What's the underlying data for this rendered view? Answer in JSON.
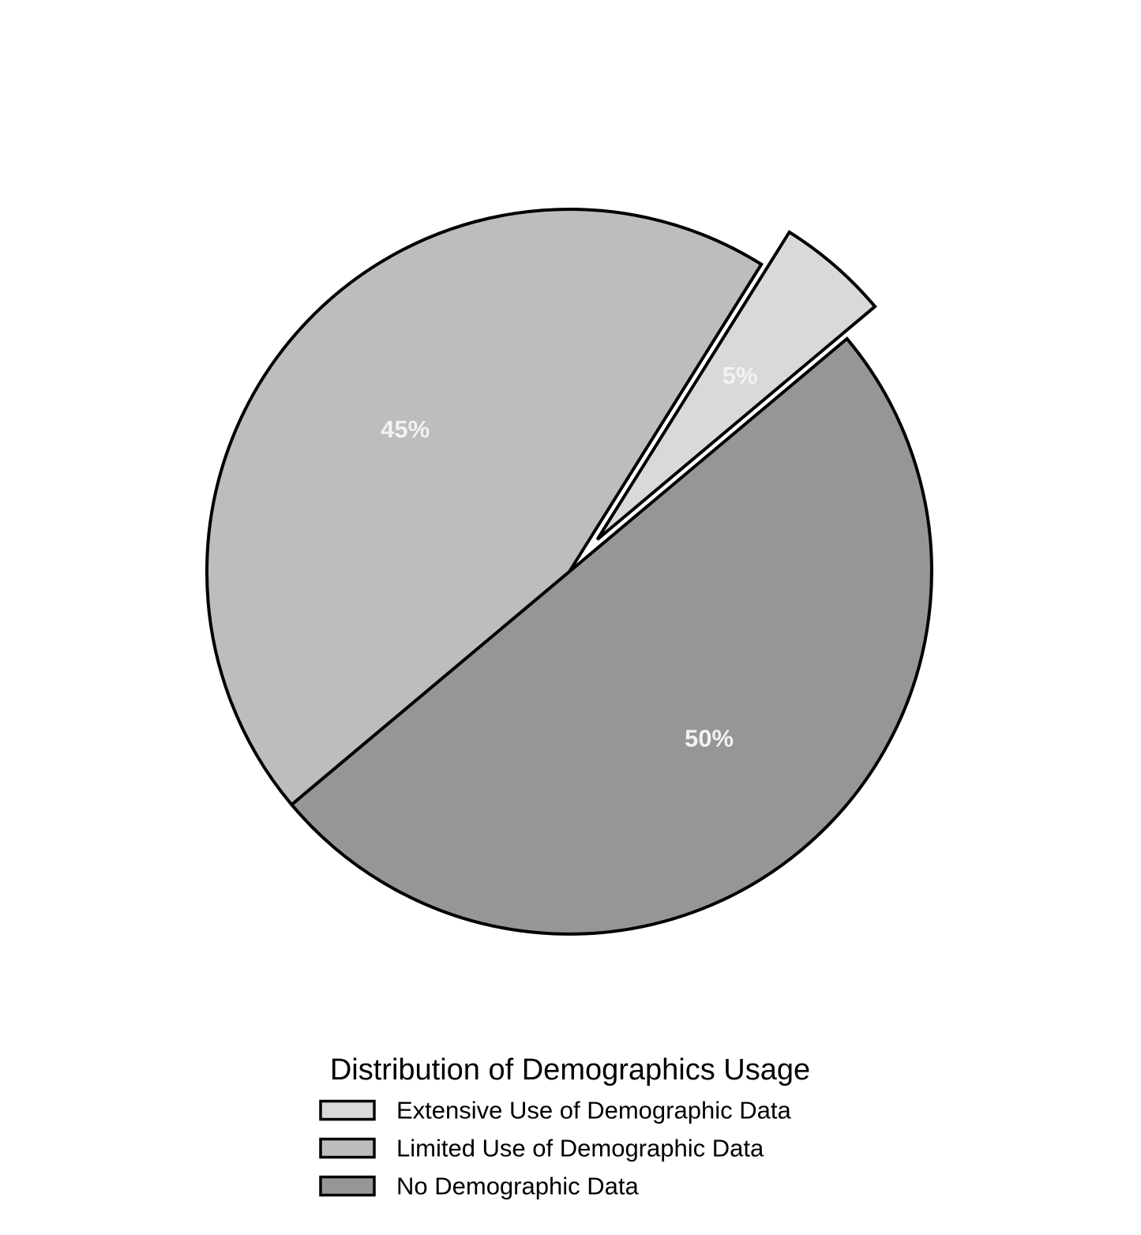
{
  "chart_data": {
    "type": "pie",
    "categories": [
      "Extensive Use of Demographic Data",
      "Limited Use of Demographic Data",
      "No Demographic Data"
    ],
    "values": [
      5,
      45,
      50
    ],
    "labels": [
      "5%",
      "45%",
      "50%"
    ],
    "colors": [
      "#d9d9d9",
      "#bdbdbd",
      "#969696"
    ],
    "exploded": [
      true,
      false,
      false
    ],
    "legend": {
      "title": "Distribution of Demographics Usage",
      "placement": "bottom-center"
    }
  }
}
